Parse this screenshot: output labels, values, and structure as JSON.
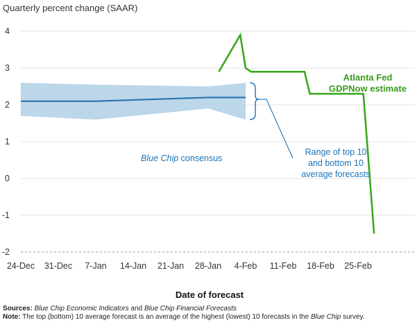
{
  "chart_data": {
    "type": "line",
    "title": "",
    "ylabel": "Quarterly percent change (SAAR)",
    "xlabel": "Date of forecast",
    "ylim": [
      -2,
      4.5
    ],
    "yticks": [
      "4",
      "3",
      "2",
      "1",
      "0",
      "-1",
      "-2"
    ],
    "ytick_values": [
      4,
      3,
      2,
      1,
      0,
      -1,
      -2
    ],
    "xticks": [
      "24-Dec",
      "31-Dec",
      "7-Jan",
      "14-Jan",
      "21-Jan",
      "28-Jan",
      "4-Feb",
      "11-Feb",
      "18-Feb",
      "25-Feb"
    ],
    "grid": "horizontal",
    "colors": {
      "consensus": "#1f6fae",
      "band": "#bcd6ea",
      "gdpnow": "#3aa81d",
      "annotation_blue": "#1a73b8"
    },
    "series": [
      {
        "name": "Blue Chip consensus",
        "x": [
          "24-Dec",
          "7-Jan",
          "28-Jan",
          "4-Feb"
        ],
        "y": [
          2.1,
          2.1,
          2.2,
          2.2
        ]
      },
      {
        "name": "Atlanta Fed GDPNow estimate",
        "x": [
          "30-Jan",
          "3-Feb",
          "4-Feb",
          "5-Feb",
          "15-Feb",
          "16-Feb",
          "26-Feb",
          "28-Feb"
        ],
        "y": [
          2.9,
          3.9,
          3.0,
          2.9,
          2.9,
          2.3,
          2.3,
          -1.5
        ]
      }
    ],
    "band": {
      "name": "Range of top 10 and bottom 10 average forecasts",
      "x": [
        "24-Dec",
        "7-Jan",
        "28-Jan",
        "4-Feb"
      ],
      "upper": [
        2.6,
        2.55,
        2.5,
        2.6
      ],
      "lower": [
        1.7,
        1.6,
        1.9,
        1.6
      ]
    },
    "annotations": {
      "consensus_italic": "Blue Chip",
      "consensus_rest": " consensus",
      "range_lines": [
        "Range of top 10",
        "and bottom 10",
        "average forecasts"
      ],
      "gdpnow_lines": [
        "Atlanta Fed",
        "GDPNow estimate"
      ]
    }
  },
  "footer": {
    "sources_label": "Sources:",
    "sources_italic": "Blue Chip Economic Indicators",
    "sources_and": " and ",
    "sources_italic2": "Blue Chip Financial Forecasts",
    "note_label": "Note:",
    "note_text": " The top (bottom) 10 average forecast is an average of the highest (lowest) 10 forecasts in the ",
    "note_italic": "Blue Chip",
    "note_tail": " survey."
  }
}
